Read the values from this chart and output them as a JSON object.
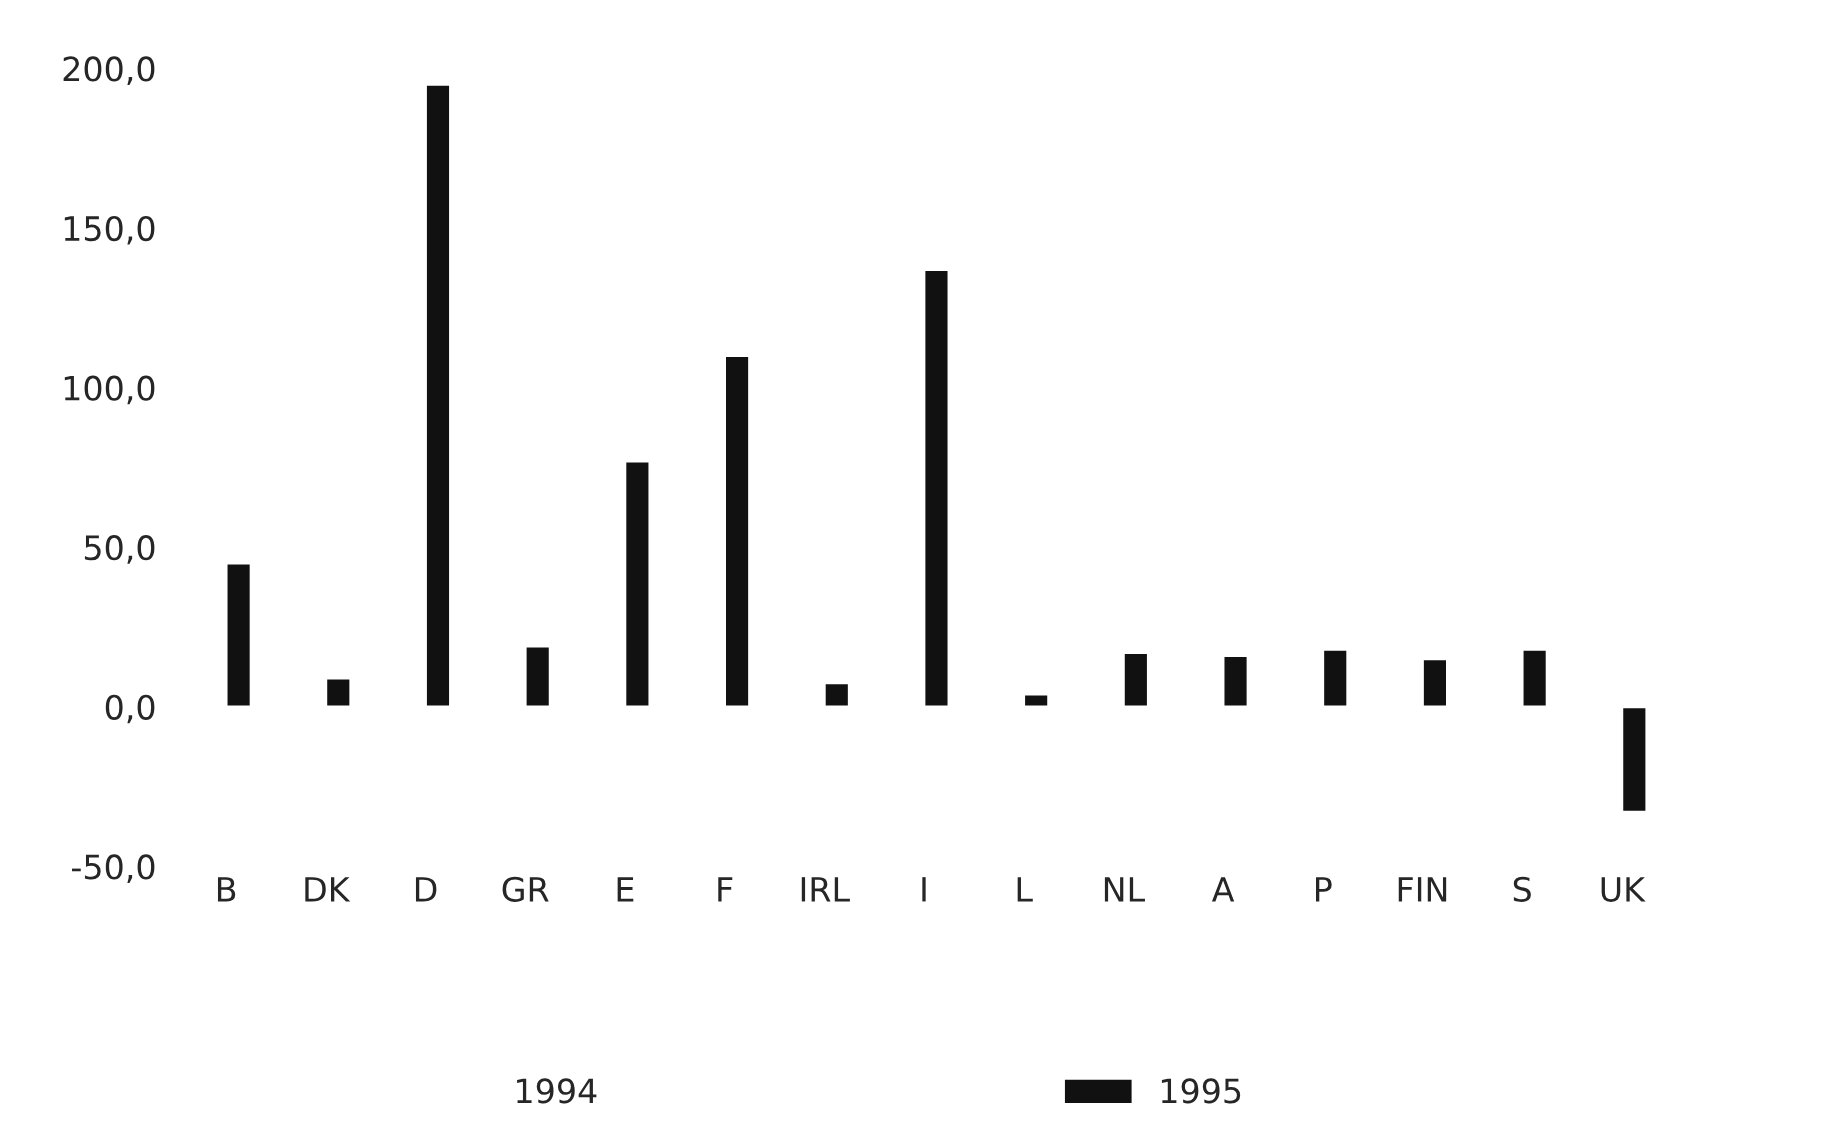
{
  "chart_data": {
    "type": "bar",
    "categories": [
      "B",
      "DK",
      "D",
      "GR",
      "E",
      "F",
      "IRL",
      "I",
      "L",
      "NL",
      "A",
      "P",
      "FIN",
      "S",
      "UK"
    ],
    "series": [
      {
        "name": "1994",
        "values": [
          null,
          null,
          null,
          null,
          null,
          null,
          null,
          null,
          null,
          null,
          null,
          null,
          null,
          null,
          null
        ]
      },
      {
        "name": "1995",
        "color": "#111111",
        "values": [
          45,
          9,
          195,
          19,
          77,
          110,
          7.5,
          137,
          4,
          17,
          16,
          18,
          15,
          18,
          -33
        ]
      }
    ],
    "ylim": [
      -50,
      200
    ],
    "yticks": [
      {
        "value": -50,
        "label": "-50,0"
      },
      {
        "value": 0,
        "label": "0,0"
      },
      {
        "value": 50,
        "label": "50,0"
      },
      {
        "value": 100,
        "label": "100,0"
      },
      {
        "value": 150,
        "label": "150,0"
      },
      {
        "value": 200,
        "label": "200,0"
      }
    ],
    "grid": false,
    "legend": "bottom"
  }
}
